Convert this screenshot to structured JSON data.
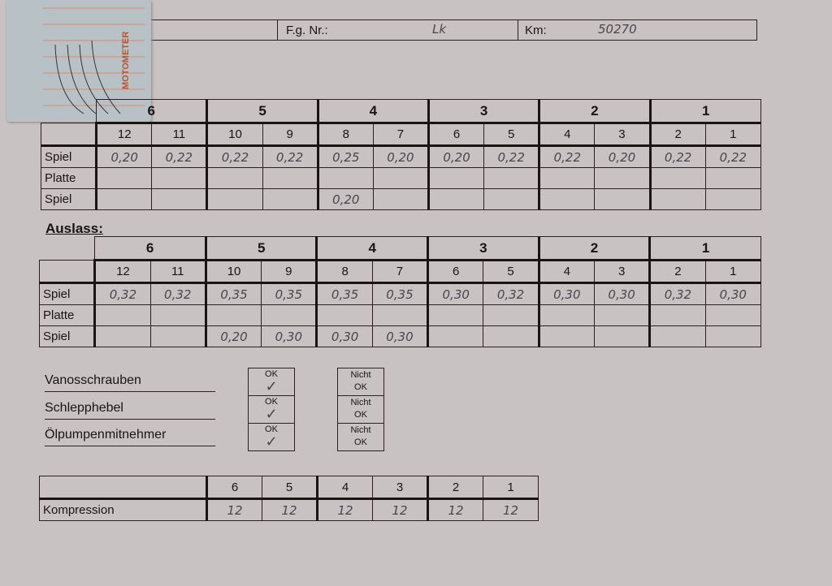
{
  "header": {
    "fg_label": "F.g. Nr.:",
    "fg_value": "Lk",
    "km_label": "Km:",
    "km_value": "50270"
  },
  "gauge_card": {
    "brand": "MOTOMETER"
  },
  "cylinders": [
    "6",
    "5",
    "4",
    "3",
    "2",
    "1"
  ],
  "valves": [
    "12",
    "11",
    "10",
    "9",
    "8",
    "7",
    "6",
    "5",
    "4",
    "3",
    "2",
    "1"
  ],
  "einlass": {
    "rows": [
      {
        "label": "Spiel",
        "values": [
          "0,20",
          "0,22",
          "0,22",
          "0,22",
          "0,25",
          "0,20",
          "0,20",
          "0,22",
          "0,22",
          "0,20",
          "0,22",
          "0,22"
        ]
      },
      {
        "label": "Platte",
        "values": [
          "",
          "",
          "",
          "",
          "",
          "",
          "",
          "",
          "",
          "",
          "",
          ""
        ]
      },
      {
        "label": "Spiel",
        "values": [
          "",
          "",
          "",
          "",
          "0,20",
          "",
          "",
          "",
          "",
          "",
          "",
          ""
        ]
      }
    ]
  },
  "auslass": {
    "title": "Auslass:",
    "rows": [
      {
        "label": "Spiel",
        "values": [
          "0,32",
          "0,32",
          "0,35",
          "0,35",
          "0,35",
          "0,35",
          "0,30",
          "0,32",
          "0,30",
          "0,30",
          "0,32",
          "0,30"
        ]
      },
      {
        "label": "Platte",
        "values": [
          "",
          "",
          "",
          "",
          "",
          "",
          "",
          "",
          "",
          "",
          "",
          ""
        ]
      },
      {
        "label": "Spiel",
        "values": [
          "",
          "",
          "0,20",
          "0,30",
          "0,30",
          "0,30",
          "",
          "",
          "",
          "",
          "",
          ""
        ]
      }
    ]
  },
  "checks": [
    {
      "label": "Vanosschrauben",
      "ok": "OK",
      "nicht_ok": "Nicht OK",
      "checked": "ok"
    },
    {
      "label": "Schlepphebel",
      "ok": "OK",
      "nicht_ok": "Nicht OK",
      "checked": "ok"
    },
    {
      "label": "Ölpumpenmitnehmer",
      "ok": "OK",
      "nicht_ok": "Nicht OK",
      "checked": "ok"
    }
  ],
  "kompression": {
    "label": "Kompression",
    "values": [
      "12",
      "12",
      "12",
      "12",
      "12",
      "12"
    ]
  }
}
